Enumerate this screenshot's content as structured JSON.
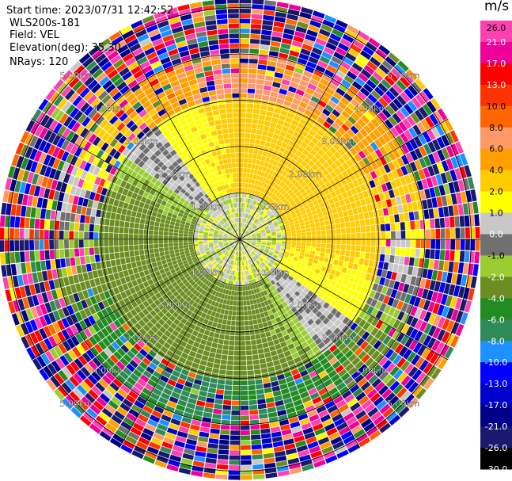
{
  "header": {
    "start_time": "Start time: 2023/07/31 12:42:52",
    "instrument": "WLS200s-181",
    "field": "Field: VEL",
    "elevation": "Elevation(deg): 35.30",
    "nrays": "NRays: 120"
  },
  "chart_data": {
    "type": "heatmap",
    "projection": "polar-ppi",
    "grid": true,
    "range_rings_km": [
      1.0,
      2.0,
      3.0,
      4.0,
      5.0
    ],
    "range_ring_labels": [
      "1.00km",
      "2.00km",
      "3.00km",
      "4.00km",
      "5.00km"
    ],
    "spokes_deg": [
      0,
      30,
      60,
      90,
      120,
      150,
      180,
      210,
      240,
      270,
      300,
      330
    ],
    "colorbar": {
      "unit": "m/s",
      "position": "right",
      "ticks": [
        26.0,
        21.0,
        17.0,
        13.0,
        10.0,
        8.0,
        6.0,
        4.0,
        2.0,
        1.0,
        0.0,
        -1.0,
        -2.0,
        -4.0,
        -6.0,
        -8.0,
        -10.0,
        -13.0,
        -17.0,
        -21.0,
        -26.0,
        -30.0
      ],
      "tick_labels": [
        "26.0",
        "21.0",
        "17.0",
        "13.0",
        "10.0",
        "8.0",
        "6.0",
        "4.0",
        "2.0",
        "1.0",
        "0.0",
        "-1.0",
        "-2.0",
        "-4.0",
        "-6.0",
        "-8.0",
        "-10.0",
        "-13.0",
        "-17.0",
        "-21.0",
        "-26.0",
        "-30.0"
      ],
      "colors": [
        "#ffffff",
        "#ff40b0",
        "#ee0099",
        "#ff0000",
        "#ff3300",
        "#ff6600",
        "#ff9966",
        "#ffa000",
        "#ffcc00",
        "#ffff00",
        "#c8c8c8",
        "#707070",
        "#9acd32",
        "#6b8e23",
        "#228b22",
        "#2e8b57",
        "#1e90ff",
        "#0000ff",
        "#0000cd",
        "#00008b",
        "#191970"
      ]
    },
    "regions": [
      {
        "range_km": [
          0,
          1.0
        ],
        "values": "mixed near-zero",
        "dominant": [
          0.0,
          -1.0,
          2.0
        ]
      },
      {
        "range_km": [
          1.0,
          3.0
        ],
        "azimuth": "north-east",
        "dominant_value": 2.5
      },
      {
        "range_km": [
          1.0,
          3.0
        ],
        "azimuth": "south-west",
        "dominant_value": -2.5
      },
      {
        "range_km": [
          3.0,
          4.0
        ],
        "azimuth": "north",
        "dominant_value": 4.5
      },
      {
        "range_km": [
          3.0,
          4.0
        ],
        "azimuth": "south",
        "dominant_value": -5.0
      },
      {
        "range_km": [
          4.0,
          5.2
        ],
        "values": "noise across full colour scale"
      }
    ]
  }
}
